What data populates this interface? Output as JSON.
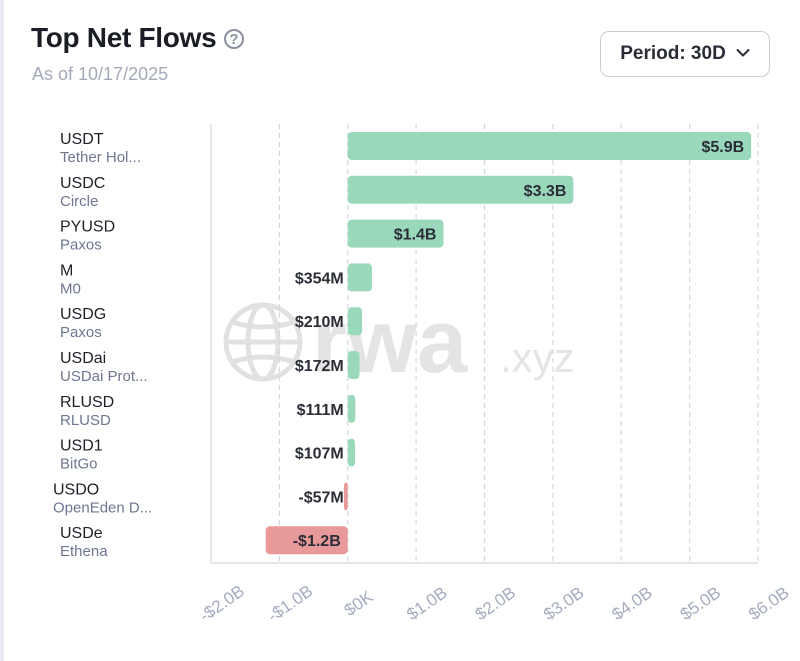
{
  "header": {
    "title": "Top Net Flows",
    "help_icon": "question-circle-icon",
    "subtitle": "As of 10/17/2025",
    "period_label": "Period: 30D",
    "period_icon": "chevron-down-icon"
  },
  "watermark": {
    "text": "rwa",
    "suffix": ".xyz",
    "icon": "globe-icon"
  },
  "colors": {
    "positive": "#9ad8bb",
    "negative": "#e89a9a",
    "grid": "#d4d8e4",
    "axis": "#c8ccd8"
  },
  "chart_data": {
    "type": "bar",
    "orientation": "horizontal",
    "title": "Top Net Flows",
    "xlim": [
      -2.0,
      6.0
    ],
    "categories": [
      {
        "name": "USDT",
        "issuer": "Tether Hol...",
        "value": 5.9,
        "label": "$5.9B"
      },
      {
        "name": "USDC",
        "issuer": "Circle",
        "value": 3.3,
        "label": "$3.3B"
      },
      {
        "name": "PYUSD",
        "issuer": "Paxos",
        "value": 1.4,
        "label": "$1.4B"
      },
      {
        "name": "M",
        "issuer": "M0",
        "value": 0.354,
        "label": "$354M"
      },
      {
        "name": "USDG",
        "issuer": "Paxos",
        "value": 0.21,
        "label": "$210M"
      },
      {
        "name": "USDai",
        "issuer": "USDai Prot...",
        "value": 0.172,
        "label": "$172M"
      },
      {
        "name": "RLUSD",
        "issuer": "RLUSD",
        "value": 0.111,
        "label": "$111M"
      },
      {
        "name": "USD1",
        "issuer": "BitGo",
        "value": 0.107,
        "label": "$107M"
      },
      {
        "name": "USDO",
        "issuer": "OpenEden D...",
        "value": -0.057,
        "label": "-$57M"
      },
      {
        "name": "USDe",
        "issuer": "Ethena",
        "value": -1.2,
        "label": "-$1.2B"
      }
    ],
    "x_ticks": [
      {
        "value": -2.0,
        "label": "-$2.0B"
      },
      {
        "value": -1.0,
        "label": "-$1.0B"
      },
      {
        "value": 0.0,
        "label": "$0K"
      },
      {
        "value": 1.0,
        "label": "$1.0B"
      },
      {
        "value": 2.0,
        "label": "$2.0B"
      },
      {
        "value": 3.0,
        "label": "$3.0B"
      },
      {
        "value": 4.0,
        "label": "$4.0B"
      },
      {
        "value": 5.0,
        "label": "$5.0B"
      },
      {
        "value": 6.0,
        "label": "$6.0B"
      }
    ]
  }
}
